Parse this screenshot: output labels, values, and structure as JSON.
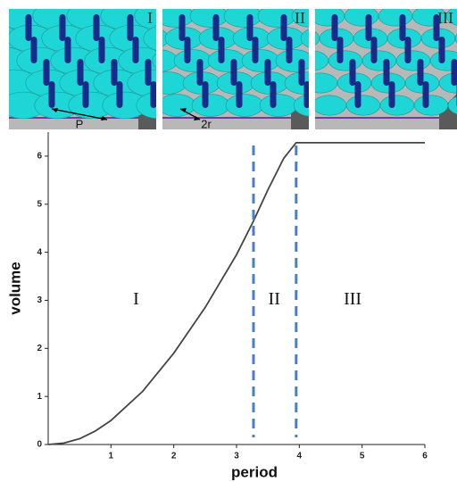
{
  "panels": [
    {
      "label": "I",
      "annotation": "P"
    },
    {
      "label": "II",
      "annotation": "2r"
    },
    {
      "label": "III"
    }
  ],
  "chart_data": {
    "type": "line",
    "x_label": "period",
    "y_label": "volume",
    "x": [
      0,
      0.25,
      0.5,
      0.75,
      1,
      1.5,
      2,
      2.5,
      3,
      3.27,
      3.5,
      3.75,
      3.95,
      4.5,
      5,
      5.5,
      6
    ],
    "series": [
      {
        "name": "volume",
        "color": "#444444",
        "values": [
          0,
          0.03,
          0.12,
          0.28,
          0.5,
          1.1,
          1.9,
          2.85,
          3.95,
          4.65,
          5.3,
          5.95,
          6.28,
          6.28,
          6.28,
          6.28,
          6.28
        ]
      }
    ],
    "vlines": [
      3.27,
      3.95
    ],
    "vline_color": "#4a7fc1",
    "annotations": [
      {
        "text": "I",
        "x": 1.4,
        "y": 3
      },
      {
        "text": "II",
        "x": 3.6,
        "y": 3
      },
      {
        "text": "III",
        "x": 4.85,
        "y": 3
      }
    ],
    "xlim": [
      0,
      6
    ],
    "ylim": [
      0,
      6.5
    ],
    "xticks": [
      1,
      2,
      3,
      4,
      5,
      6
    ],
    "yticks": [
      0,
      1,
      2,
      3,
      4,
      5,
      6
    ]
  }
}
